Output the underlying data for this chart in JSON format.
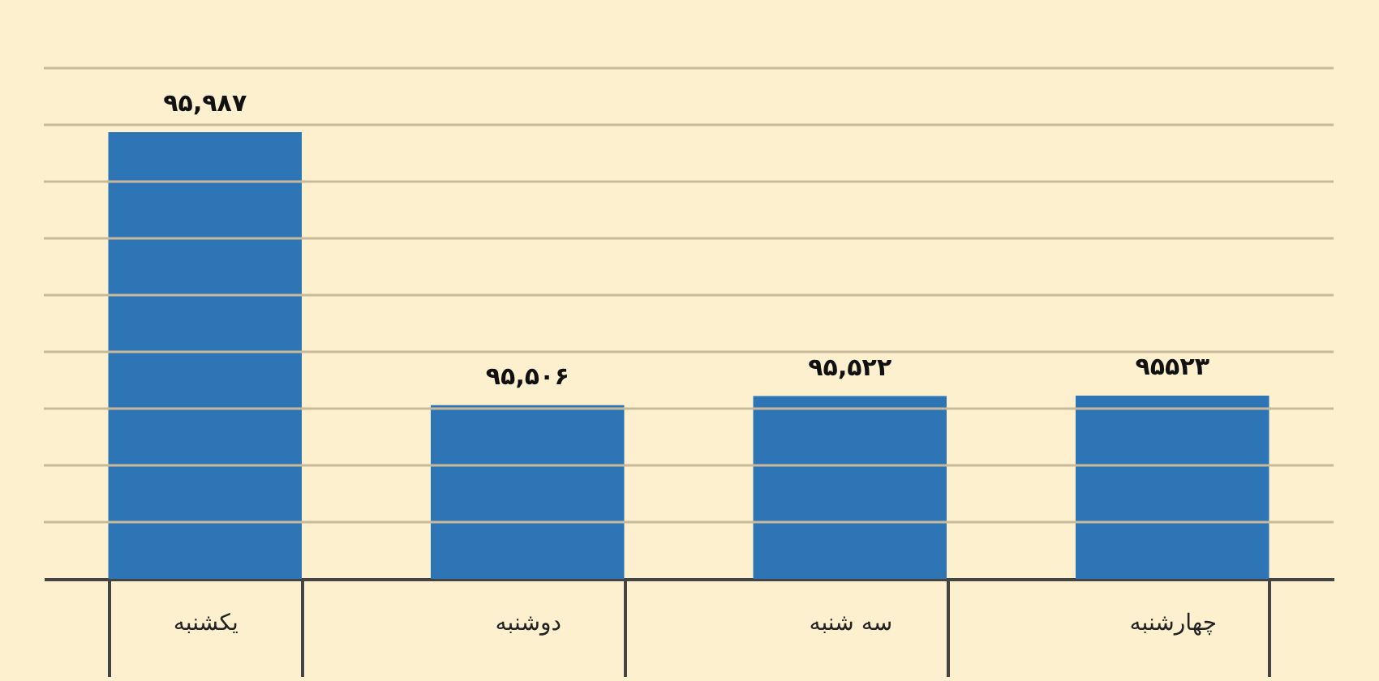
{
  "chart_data": {
    "type": "bar",
    "categories": [
      "یکشنبه",
      "دوشنبه",
      "سه شنبه",
      "چهارشنبه"
    ],
    "values": [
      95987,
      95506,
      95522,
      95523
    ],
    "value_labels": [
      "۹۵,۹۸۷",
      "۹۵,۵۰۶",
      "۹۵,۵۲۲",
      "۹۵۵۲۳"
    ],
    "color": "#2e75b6",
    "ylim": [
      95200,
      96100
    ],
    "yticks": [
      {
        "value": 95300,
        "label": null
      },
      {
        "value": 95400,
        "label": null
      },
      {
        "value": 95500,
        "label": null
      },
      {
        "value": 95600,
        "label": null
      },
      {
        "value": 95700,
        "label": null
      },
      {
        "value": 95800,
        "label": null
      },
      {
        "value": 95900,
        "label": null
      },
      {
        "value": 96000,
        "label": null
      },
      {
        "value": 96100,
        "label": null
      }
    ],
    "tick_labels": "x",
    "grid": "y"
  }
}
